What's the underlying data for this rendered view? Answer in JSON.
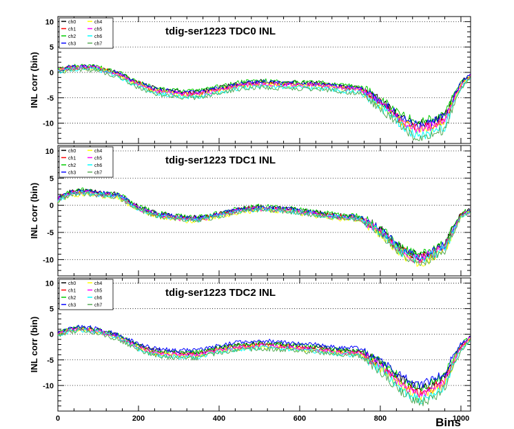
{
  "chart_data": [
    {
      "type": "line",
      "title": "tdig-ser1223 TDC0 INL",
      "ylabel": "INL corr (bin)",
      "xlim": [
        0,
        1024
      ],
      "ylim": [
        -14,
        11
      ],
      "y_ticks": [
        10,
        5,
        0,
        -5,
        -10
      ],
      "y_tick_labels": [
        "10",
        "5",
        "0",
        "-5",
        "-10"
      ],
      "grid": "horizontal dotted",
      "legend": {
        "placement": "top-left",
        "columns": 2,
        "entries": [
          "ch0",
          "ch1",
          "ch2",
          "ch3",
          "ch4",
          "ch5",
          "ch6",
          "ch7"
        ]
      },
      "x": [
        0,
        30,
        60,
        100,
        150,
        200,
        240,
        300,
        350,
        400,
        450,
        500,
        550,
        600,
        650,
        700,
        750,
        800,
        850,
        880,
        900,
        930,
        960,
        980,
        1000,
        1024
      ],
      "series": [
        {
          "name": "ch0",
          "values": [
            0.5,
            1.0,
            1.1,
            0.9,
            -0.2,
            -2.0,
            -3.2,
            -3.8,
            -3.9,
            -3.0,
            -2.2,
            -1.8,
            -2.0,
            -2.1,
            -2.2,
            -2.7,
            -3.0,
            -5.5,
            -8.5,
            -9.8,
            -10.2,
            -9.5,
            -8.5,
            -5.0,
            -2.0,
            -0.5
          ]
        },
        {
          "name": "ch1",
          "values": [
            0.4,
            0.9,
            1.0,
            0.8,
            -0.3,
            -2.2,
            -3.5,
            -4.1,
            -4.2,
            -3.3,
            -2.5,
            -2.1,
            -2.3,
            -2.4,
            -2.5,
            -3.0,
            -3.3,
            -6.0,
            -9.3,
            -10.7,
            -11.0,
            -10.3,
            -9.3,
            -5.6,
            -2.4,
            -0.7
          ]
        },
        {
          "name": "ch2",
          "values": [
            0.6,
            1.1,
            1.3,
            1.1,
            0.0,
            -1.9,
            -3.1,
            -3.6,
            -3.7,
            -2.8,
            -2.0,
            -1.6,
            -1.8,
            -1.9,
            -2.0,
            -2.5,
            -2.8,
            -5.3,
            -8.2,
            -9.4,
            -9.8,
            -9.0,
            -8.0,
            -4.6,
            -1.7,
            -0.4
          ]
        },
        {
          "name": "ch3",
          "values": [
            0.5,
            1.0,
            1.2,
            1.0,
            -0.1,
            -2.1,
            -3.3,
            -3.9,
            -4.0,
            -3.1,
            -2.3,
            -1.9,
            -2.1,
            -2.2,
            -2.3,
            -2.8,
            -3.1,
            -5.7,
            -8.8,
            -10.1,
            -10.5,
            -9.8,
            -8.8,
            -5.2,
            -2.1,
            -0.5
          ]
        },
        {
          "name": "ch4",
          "values": [
            0.3,
            0.8,
            0.9,
            0.7,
            -0.5,
            -2.4,
            -3.7,
            -4.3,
            -4.4,
            -3.5,
            -2.7,
            -2.3,
            -2.5,
            -2.6,
            -2.7,
            -3.2,
            -3.5,
            -6.3,
            -9.6,
            -11.1,
            -11.5,
            -10.8,
            -9.7,
            -5.9,
            -2.6,
            -0.8
          ]
        },
        {
          "name": "ch5",
          "values": [
            0.4,
            0.9,
            1.0,
            0.8,
            -0.4,
            -2.3,
            -3.6,
            -4.2,
            -4.3,
            -3.4,
            -2.6,
            -2.2,
            -2.4,
            -2.5,
            -2.6,
            -3.1,
            -3.4,
            -6.1,
            -9.4,
            -10.9,
            -11.2,
            -10.5,
            -9.5,
            -5.7,
            -2.5,
            -0.7
          ]
        },
        {
          "name": "ch6",
          "values": [
            0.2,
            0.6,
            0.7,
            0.5,
            -0.8,
            -2.8,
            -4.1,
            -4.7,
            -4.8,
            -3.9,
            -3.1,
            -2.7,
            -2.9,
            -3.0,
            -3.1,
            -3.6,
            -3.9,
            -6.8,
            -10.3,
            -12.0,
            -12.6,
            -11.9,
            -10.8,
            -6.6,
            -3.0,
            -1.0
          ]
        },
        {
          "name": "ch7",
          "values": [
            0.1,
            0.5,
            0.6,
            0.4,
            -0.9,
            -3.0,
            -4.3,
            -4.9,
            -5.0,
            -4.1,
            -3.3,
            -2.9,
            -3.1,
            -3.2,
            -3.3,
            -3.8,
            -4.1,
            -7.1,
            -10.7,
            -12.4,
            -13.0,
            -12.3,
            -11.2,
            -6.9,
            -3.2,
            -1.1
          ]
        }
      ]
    },
    {
      "type": "line",
      "title": "tdig-ser1223 TDC1 INL",
      "ylabel": "INL corr (bin)",
      "xlim": [
        0,
        1024
      ],
      "ylim": [
        -13,
        11
      ],
      "y_ticks": [
        10,
        5,
        0,
        -5,
        -10
      ],
      "y_tick_labels": [
        "10",
        "5",
        "0",
        "-5",
        "-10"
      ],
      "grid": "horizontal dotted",
      "legend": {
        "placement": "top-left",
        "columns": 2,
        "entries": [
          "ch0",
          "ch1",
          "ch2",
          "ch3",
          "ch4",
          "ch5",
          "ch6",
          "ch7"
        ]
      },
      "x": [
        0,
        30,
        60,
        100,
        150,
        200,
        240,
        300,
        350,
        400,
        450,
        500,
        550,
        600,
        650,
        700,
        750,
        800,
        850,
        880,
        900,
        930,
        960,
        980,
        1000,
        1024
      ],
      "series": [
        {
          "name": "ch0",
          "values": [
            1.3,
            2.4,
            2.7,
            2.4,
            2.0,
            -0.3,
            -1.4,
            -2.1,
            -2.3,
            -1.5,
            -0.7,
            -0.3,
            -0.5,
            -0.9,
            -1.4,
            -1.9,
            -2.1,
            -4.5,
            -7.8,
            -9.0,
            -9.4,
            -8.4,
            -7.2,
            -4.5,
            -1.6,
            -0.9
          ]
        },
        {
          "name": "ch1",
          "values": [
            1.2,
            2.2,
            2.5,
            2.2,
            1.8,
            -0.5,
            -1.6,
            -2.3,
            -2.5,
            -1.7,
            -0.9,
            -0.5,
            -0.7,
            -1.1,
            -1.6,
            -2.1,
            -2.3,
            -4.8,
            -8.2,
            -9.4,
            -9.8,
            -8.8,
            -7.6,
            -4.8,
            -1.8,
            -1.0
          ]
        },
        {
          "name": "ch2",
          "values": [
            1.4,
            2.5,
            2.8,
            2.5,
            2.1,
            -0.2,
            -1.3,
            -2.0,
            -2.2,
            -1.4,
            -0.6,
            -0.2,
            -0.4,
            -0.8,
            -1.3,
            -1.8,
            -2.0,
            -4.4,
            -7.6,
            -8.8,
            -9.2,
            -8.2,
            -7.0,
            -4.3,
            -1.5,
            -0.8
          ]
        },
        {
          "name": "ch3",
          "values": [
            1.3,
            2.3,
            2.6,
            2.3,
            1.9,
            -0.4,
            -1.5,
            -2.2,
            -2.4,
            -1.6,
            -0.8,
            -0.4,
            -0.6,
            -1.0,
            -1.5,
            -2.0,
            -2.2,
            -4.6,
            -8.0,
            -9.2,
            -9.6,
            -8.6,
            -7.4,
            -4.6,
            -1.7,
            -0.9
          ]
        },
        {
          "name": "ch4",
          "values": [
            0.8,
            1.8,
            2.1,
            1.8,
            1.4,
            -0.9,
            -2.0,
            -2.7,
            -2.9,
            -2.1,
            -1.3,
            -0.9,
            -1.1,
            -1.5,
            -2.0,
            -2.5,
            -2.7,
            -5.3,
            -8.8,
            -10.2,
            -10.7,
            -9.7,
            -8.4,
            -5.4,
            -2.2,
            -1.2
          ]
        },
        {
          "name": "ch5",
          "values": [
            1.1,
            2.1,
            2.4,
            2.1,
            1.7,
            -0.6,
            -1.7,
            -2.4,
            -2.6,
            -1.8,
            -1.0,
            -0.6,
            -0.8,
            -1.2,
            -1.7,
            -2.2,
            -2.4,
            -4.9,
            -8.3,
            -9.6,
            -10.0,
            -9.0,
            -7.8,
            -4.9,
            -1.9,
            -1.0
          ]
        },
        {
          "name": "ch6",
          "values": [
            1.0,
            2.0,
            2.3,
            2.0,
            1.6,
            -0.7,
            -1.8,
            -2.5,
            -2.7,
            -1.9,
            -1.1,
            -0.7,
            -0.9,
            -1.3,
            -1.8,
            -2.3,
            -2.5,
            -5.0,
            -8.5,
            -9.8,
            -10.2,
            -9.2,
            -8.0,
            -5.1,
            -2.0,
            -1.1
          ]
        },
        {
          "name": "ch7",
          "values": [
            0.9,
            1.9,
            2.2,
            1.9,
            1.5,
            -0.8,
            -1.9,
            -2.6,
            -2.8,
            -2.0,
            -1.2,
            -0.8,
            -1.0,
            -1.4,
            -1.9,
            -2.4,
            -2.6,
            -5.2,
            -8.7,
            -10.0,
            -10.5,
            -9.5,
            -8.2,
            -5.2,
            -2.1,
            -1.1
          ]
        }
      ]
    },
    {
      "type": "line",
      "title": "tdig-ser1223 TDC2 INL",
      "ylabel": "INL corr (bin)",
      "xlabel": "Bins",
      "xlim": [
        0,
        1024
      ],
      "ylim": [
        -15,
        11
      ],
      "y_ticks": [
        10,
        5,
        0,
        -5,
        -10
      ],
      "y_tick_labels": [
        "10",
        "5",
        "0",
        "-5",
        "-10"
      ],
      "x_ticks": [
        0,
        200,
        400,
        600,
        800,
        1000
      ],
      "x_tick_labels": [
        "0",
        "200",
        "400",
        "600",
        "800",
        "1000"
      ],
      "grid": "horizontal dotted",
      "legend": {
        "placement": "top-left",
        "columns": 2,
        "entries": [
          "ch0",
          "ch1",
          "ch2",
          "ch3",
          "ch4",
          "ch5",
          "ch6",
          "ch7"
        ]
      },
      "x": [
        0,
        30,
        60,
        100,
        150,
        200,
        240,
        300,
        350,
        400,
        450,
        500,
        550,
        600,
        650,
        700,
        750,
        800,
        850,
        880,
        900,
        930,
        960,
        980,
        1000,
        1024
      ],
      "series": [
        {
          "name": "ch0",
          "values": [
            0.2,
            0.9,
            1.3,
            0.8,
            -0.3,
            -2.2,
            -3.2,
            -3.7,
            -3.6,
            -2.6,
            -2.1,
            -1.8,
            -2.0,
            -2.3,
            -2.6,
            -3.1,
            -3.3,
            -5.6,
            -8.7,
            -10.2,
            -10.6,
            -9.8,
            -8.3,
            -5.0,
            -2.2,
            -0.6
          ]
        },
        {
          "name": "ch1",
          "values": [
            0.1,
            0.8,
            1.1,
            0.6,
            -0.5,
            -2.5,
            -3.5,
            -4.0,
            -3.9,
            -2.9,
            -2.4,
            -2.1,
            -2.3,
            -2.6,
            -2.9,
            -3.4,
            -3.6,
            -6.1,
            -9.4,
            -11.0,
            -11.4,
            -10.6,
            -9.0,
            -5.5,
            -2.5,
            -0.7
          ]
        },
        {
          "name": "ch2",
          "values": [
            0.3,
            1.0,
            1.4,
            0.9,
            -0.2,
            -2.1,
            -3.1,
            -3.6,
            -3.5,
            -2.5,
            -2.0,
            -1.7,
            -1.9,
            -2.2,
            -2.5,
            -3.0,
            -3.2,
            -5.4,
            -8.5,
            -9.9,
            -10.3,
            -9.5,
            -8.0,
            -4.8,
            -2.0,
            -0.5
          ]
        },
        {
          "name": "ch3",
          "values": [
            0.4,
            1.1,
            1.5,
            1.0,
            -0.1,
            -1.9,
            -2.8,
            -3.2,
            -3.1,
            -2.1,
            -1.6,
            -1.3,
            -1.5,
            -1.8,
            -2.1,
            -2.6,
            -2.8,
            -5.1,
            -8.1,
            -9.5,
            -9.8,
            -9.0,
            -7.6,
            -4.5,
            -1.8,
            -0.4
          ]
        },
        {
          "name": "ch4",
          "values": [
            0.0,
            0.7,
            1.0,
            0.5,
            -0.7,
            -2.7,
            -3.8,
            -4.3,
            -4.2,
            -3.2,
            -2.7,
            -2.4,
            -2.6,
            -2.9,
            -3.2,
            -3.7,
            -3.9,
            -6.5,
            -10.0,
            -11.7,
            -12.2,
            -11.3,
            -9.6,
            -5.9,
            -2.8,
            -0.8
          ]
        },
        {
          "name": "ch5",
          "values": [
            0.1,
            0.8,
            1.1,
            0.6,
            -0.6,
            -2.6,
            -3.6,
            -4.1,
            -4.0,
            -3.0,
            -2.5,
            -2.2,
            -2.4,
            -2.7,
            -3.0,
            -3.5,
            -3.7,
            -6.3,
            -9.7,
            -11.3,
            -11.8,
            -10.9,
            -9.3,
            -5.7,
            -2.6,
            -0.7
          ]
        },
        {
          "name": "ch6",
          "values": [
            -0.1,
            0.6,
            0.9,
            0.4,
            -0.8,
            -2.9,
            -4.0,
            -4.5,
            -4.4,
            -3.4,
            -2.9,
            -2.6,
            -2.8,
            -3.1,
            -3.4,
            -3.9,
            -4.1,
            -6.9,
            -10.5,
            -12.3,
            -12.8,
            -11.9,
            -10.1,
            -6.2,
            -3.0,
            -0.9
          ]
        },
        {
          "name": "ch7",
          "values": [
            -0.2,
            0.5,
            0.8,
            0.3,
            -1.0,
            -3.1,
            -4.2,
            -4.7,
            -4.6,
            -3.6,
            -3.1,
            -2.8,
            -3.0,
            -3.3,
            -3.6,
            -4.1,
            -4.3,
            -7.2,
            -11.0,
            -12.8,
            -13.4,
            -12.4,
            -10.6,
            -6.5,
            -3.2,
            -1.0
          ]
        }
      ]
    }
  ],
  "series_colors": {
    "ch0": "#000000",
    "ch1": "#ff0000",
    "ch2": "#00cc00",
    "ch3": "#0000ff",
    "ch4": "#ffff00",
    "ch5": "#ff00ff",
    "ch6": "#00ffff",
    "ch7": "#55aa55"
  }
}
